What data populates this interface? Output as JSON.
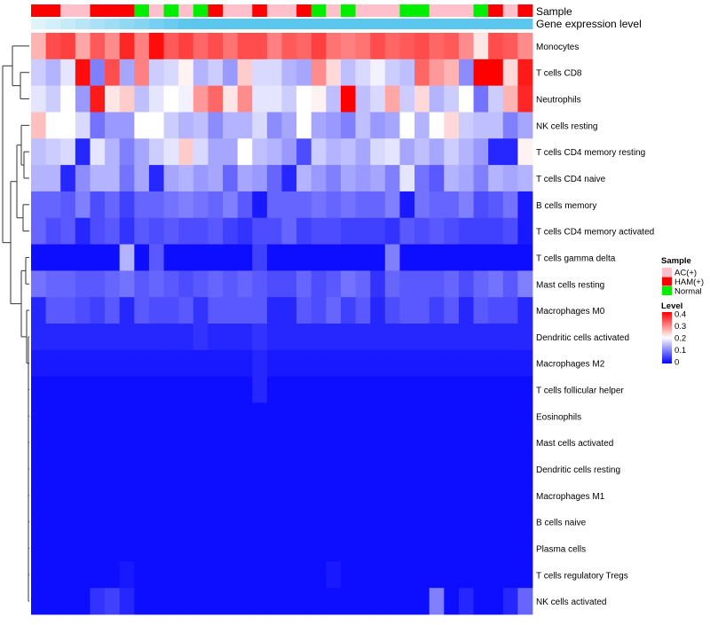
{
  "chart_data": {
    "type": "heatmap",
    "title": "",
    "annotation_labels": {
      "sample": "Sample",
      "expression": "Gene expression level"
    },
    "legend": {
      "sample_title": "Sample",
      "sample_entries": [
        {
          "label": "AC(+)",
          "color": "#ffc0cb"
        },
        {
          "label": "HAM(+)",
          "color": "#ff0000"
        },
        {
          "label": "Normal",
          "color": "#00ee00"
        }
      ],
      "level_title": "Level",
      "level_ticks": [
        "0.4",
        "0.3",
        "0.2",
        "0.1",
        "0"
      ],
      "level_range": [
        0,
        0.4
      ],
      "level_colors": {
        "low": "#0000ff",
        "mid": "#ffffff",
        "high": "#ff0000"
      }
    },
    "sample_colors": {
      "A": "#ffc0cb",
      "H": "#ff0000",
      "N": "#00ee00"
    },
    "samples": [
      "H",
      "H",
      "A",
      "A",
      "H",
      "H",
      "H",
      "N",
      "A",
      "N",
      "A",
      "N",
      "H",
      "A",
      "A",
      "H",
      "A",
      "A",
      "H",
      "N",
      "A",
      "N",
      "A",
      "A",
      "A",
      "N",
      "N",
      "A",
      "A",
      "A",
      "N",
      "H",
      "A",
      "H"
    ],
    "expression_colors": {
      "left": "#dff3fb",
      "right": "#5bc6ee"
    },
    "rows": [
      "Monocytes",
      "T cells CD8",
      "Neutrophils",
      "NK cells resting",
      "T cells CD4 memory resting",
      "T cells CD4 naive",
      "B cells memory",
      "T cells CD4 memory activated",
      "T cells gamma delta",
      "Mast cells resting",
      "Macrophages M0",
      "Dendritic cells activated",
      "Macrophages M2",
      "T cells follicular helper",
      "Eosinophils",
      "Mast cells activated",
      "Dendritic cells resting",
      "Macrophages M1",
      "B cells naive",
      "Plasma cells",
      "T cells regulatory  Tregs",
      "NK cells activated"
    ],
    "values": [
      [
        0.26,
        0.34,
        0.35,
        0.27,
        0.33,
        0.29,
        0.37,
        0.3,
        0.39,
        0.33,
        0.35,
        0.32,
        0.34,
        0.31,
        0.34,
        0.34,
        0.3,
        0.33,
        0.32,
        0.35,
        0.31,
        0.3,
        0.31,
        0.34,
        0.32,
        0.33,
        0.34,
        0.32,
        0.33,
        0.29,
        0.22,
        0.34,
        0.33,
        0.29
      ],
      [
        0.16,
        0.14,
        0.18,
        0.39,
        0.1,
        0.34,
        0.13,
        0.3,
        0.16,
        0.17,
        0.21,
        0.14,
        0.16,
        0.12,
        0.24,
        0.17,
        0.17,
        0.14,
        0.13,
        0.29,
        0.23,
        0.15,
        0.17,
        0.19,
        0.16,
        0.15,
        0.32,
        0.28,
        0.26,
        0.11,
        0.4,
        0.4,
        0.23,
        0.38
      ],
      [
        0.18,
        0.16,
        0.2,
        0.12,
        0.38,
        0.22,
        0.24,
        0.15,
        0.18,
        0.2,
        0.19,
        0.28,
        0.32,
        0.22,
        0.29,
        0.18,
        0.18,
        0.16,
        0.2,
        0.21,
        0.15,
        0.4,
        0.15,
        0.17,
        0.27,
        0.16,
        0.23,
        0.14,
        0.16,
        0.2,
        0.09,
        0.16,
        0.26,
        0.37
      ],
      [
        0.25,
        0.2,
        0.2,
        0.17,
        0.09,
        0.12,
        0.12,
        0.2,
        0.2,
        0.16,
        0.14,
        0.15,
        0.11,
        0.14,
        0.14,
        0.17,
        0.11,
        0.13,
        0.2,
        0.13,
        0.12,
        0.1,
        0.15,
        0.12,
        0.13,
        0.2,
        0.14,
        0.2,
        0.23,
        0.16,
        0.15,
        0.15,
        0.1,
        0.13
      ],
      [
        0.15,
        0.16,
        0.17,
        0.03,
        0.18,
        0.14,
        0.1,
        0.13,
        0.16,
        0.18,
        0.24,
        0.17,
        0.13,
        0.13,
        0.2,
        0.15,
        0.14,
        0.12,
        0.06,
        0.16,
        0.14,
        0.15,
        0.13,
        0.17,
        0.18,
        0.13,
        0.15,
        0.13,
        0.16,
        0.14,
        0.12,
        0.03,
        0.03,
        0.21
      ],
      [
        0.14,
        0.14,
        0.03,
        0.11,
        0.14,
        0.14,
        0.09,
        0.13,
        0.03,
        0.13,
        0.14,
        0.12,
        0.13,
        0.08,
        0.13,
        0.12,
        0.08,
        0.03,
        0.14,
        0.12,
        0.1,
        0.13,
        0.12,
        0.13,
        0.1,
        0.18,
        0.09,
        0.07,
        0.14,
        0.13,
        0.1,
        0.14,
        0.13,
        0.14
      ],
      [
        0.08,
        0.08,
        0.07,
        0.1,
        0.06,
        0.08,
        0.05,
        0.08,
        0.08,
        0.09,
        0.1,
        0.09,
        0.08,
        0.1,
        0.07,
        0.02,
        0.08,
        0.08,
        0.08,
        0.09,
        0.08,
        0.09,
        0.08,
        0.08,
        0.1,
        0.02,
        0.09,
        0.08,
        0.08,
        0.1,
        0.06,
        0.07,
        0.09,
        0.02
      ],
      [
        0.08,
        0.06,
        0.07,
        0.03,
        0.06,
        0.07,
        0.04,
        0.07,
        0.06,
        0.07,
        0.06,
        0.06,
        0.07,
        0.05,
        0.04,
        0.06,
        0.06,
        0.08,
        0.05,
        0.06,
        0.06,
        0.05,
        0.05,
        0.05,
        0.04,
        0.07,
        0.06,
        0.07,
        0.06,
        0.05,
        0.05,
        0.05,
        0.06,
        0.02
      ],
      [
        0.01,
        0.01,
        0.01,
        0.01,
        0.01,
        0.01,
        0.14,
        0.01,
        0.07,
        0.01,
        0.01,
        0.01,
        0.01,
        0.01,
        0.01,
        0.05,
        0.01,
        0.01,
        0.01,
        0.01,
        0.01,
        0.01,
        0.01,
        0.01,
        0.1,
        0.01,
        0.01,
        0.01,
        0.01,
        0.01,
        0.01,
        0.01,
        0.01,
        0.01
      ],
      [
        0.09,
        0.08,
        0.08,
        0.07,
        0.07,
        0.08,
        0.09,
        0.07,
        0.08,
        0.07,
        0.06,
        0.07,
        0.08,
        0.07,
        0.08,
        0.07,
        0.06,
        0.06,
        0.08,
        0.06,
        0.07,
        0.09,
        0.08,
        0.04,
        0.08,
        0.07,
        0.07,
        0.07,
        0.08,
        0.06,
        0.08,
        0.09,
        0.07,
        0.1
      ],
      [
        0.03,
        0.07,
        0.07,
        0.06,
        0.05,
        0.07,
        0.03,
        0.07,
        0.06,
        0.06,
        0.07,
        0.04,
        0.07,
        0.07,
        0.07,
        0.07,
        0.03,
        0.03,
        0.07,
        0.06,
        0.08,
        0.05,
        0.07,
        0.03,
        0.06,
        0.07,
        0.07,
        0.05,
        0.07,
        0.03,
        0.07,
        0.06,
        0.06,
        0.03
      ],
      [
        0.03,
        0.03,
        0.03,
        0.03,
        0.03,
        0.03,
        0.03,
        0.03,
        0.03,
        0.03,
        0.03,
        0.04,
        0.03,
        0.03,
        0.03,
        0.04,
        0.03,
        0.03,
        0.03,
        0.03,
        0.03,
        0.03,
        0.03,
        0.03,
        0.03,
        0.03,
        0.03,
        0.03,
        0.03,
        0.03,
        0.03,
        0.03,
        0.03,
        0.03
      ],
      [
        0.02,
        0.02,
        0.02,
        0.02,
        0.02,
        0.02,
        0.02,
        0.02,
        0.02,
        0.02,
        0.02,
        0.02,
        0.02,
        0.02,
        0.02,
        0.03,
        0.02,
        0.02,
        0.02,
        0.02,
        0.02,
        0.02,
        0.02,
        0.02,
        0.02,
        0.02,
        0.02,
        0.02,
        0.02,
        0.02,
        0.02,
        0.02,
        0.02,
        0.02
      ],
      [
        0.01,
        0.01,
        0.01,
        0.01,
        0.01,
        0.01,
        0.01,
        0.01,
        0.01,
        0.01,
        0.01,
        0.01,
        0.01,
        0.01,
        0.01,
        0.03,
        0.01,
        0.01,
        0.01,
        0.01,
        0.01,
        0.01,
        0.01,
        0.01,
        0.01,
        0.01,
        0.01,
        0.01,
        0.01,
        0.01,
        0.01,
        0.01,
        0.01,
        0.01
      ],
      [
        0.01,
        0.01,
        0.01,
        0.01,
        0.01,
        0.01,
        0.01,
        0.01,
        0.01,
        0.01,
        0.01,
        0.01,
        0.01,
        0.01,
        0.01,
        0.01,
        0.01,
        0.01,
        0.01,
        0.01,
        0.01,
        0.01,
        0.01,
        0.01,
        0.01,
        0.01,
        0.01,
        0.01,
        0.01,
        0.01,
        0.01,
        0.01,
        0.01,
        0.01
      ],
      [
        0.01,
        0.01,
        0.01,
        0.01,
        0.01,
        0.01,
        0.01,
        0.01,
        0.01,
        0.01,
        0.01,
        0.01,
        0.01,
        0.01,
        0.01,
        0.01,
        0.01,
        0.01,
        0.01,
        0.01,
        0.01,
        0.01,
        0.01,
        0.01,
        0.01,
        0.01,
        0.01,
        0.01,
        0.01,
        0.01,
        0.01,
        0.01,
        0.01,
        0.01
      ],
      [
        0.01,
        0.01,
        0.01,
        0.01,
        0.01,
        0.01,
        0.01,
        0.01,
        0.01,
        0.01,
        0.01,
        0.01,
        0.01,
        0.01,
        0.01,
        0.01,
        0.01,
        0.01,
        0.01,
        0.01,
        0.01,
        0.01,
        0.01,
        0.01,
        0.01,
        0.01,
        0.01,
        0.01,
        0.01,
        0.01,
        0.01,
        0.01,
        0.01,
        0.01
      ],
      [
        0.01,
        0.01,
        0.01,
        0.01,
        0.01,
        0.01,
        0.01,
        0.01,
        0.01,
        0.01,
        0.01,
        0.01,
        0.01,
        0.01,
        0.01,
        0.01,
        0.01,
        0.01,
        0.01,
        0.01,
        0.01,
        0.01,
        0.01,
        0.01,
        0.01,
        0.01,
        0.01,
        0.01,
        0.01,
        0.01,
        0.01,
        0.01,
        0.01,
        0.01
      ],
      [
        0.01,
        0.01,
        0.01,
        0.01,
        0.01,
        0.01,
        0.01,
        0.01,
        0.01,
        0.01,
        0.01,
        0.01,
        0.01,
        0.01,
        0.01,
        0.01,
        0.01,
        0.01,
        0.01,
        0.01,
        0.01,
        0.01,
        0.01,
        0.01,
        0.01,
        0.01,
        0.01,
        0.01,
        0.01,
        0.01,
        0.01,
        0.01,
        0.01,
        0.01
      ],
      [
        0.01,
        0.01,
        0.01,
        0.01,
        0.01,
        0.01,
        0.01,
        0.01,
        0.01,
        0.01,
        0.01,
        0.01,
        0.01,
        0.01,
        0.01,
        0.01,
        0.01,
        0.01,
        0.01,
        0.01,
        0.01,
        0.01,
        0.01,
        0.01,
        0.01,
        0.01,
        0.01,
        0.01,
        0.01,
        0.01,
        0.01,
        0.01,
        0.01,
        0.01
      ],
      [
        0.01,
        0.01,
        0.01,
        0.01,
        0.01,
        0.01,
        0.02,
        0.01,
        0.01,
        0.01,
        0.01,
        0.01,
        0.01,
        0.01,
        0.01,
        0.01,
        0.01,
        0.01,
        0.01,
        0.01,
        0.02,
        0.01,
        0.01,
        0.01,
        0.01,
        0.01,
        0.01,
        0.01,
        0.01,
        0.01,
        0.01,
        0.01,
        0.01,
        0.01
      ],
      [
        0.01,
        0.01,
        0.01,
        0.01,
        0.04,
        0.05,
        0.03,
        0.01,
        0.01,
        0.01,
        0.01,
        0.01,
        0.01,
        0.01,
        0.01,
        0.01,
        0.01,
        0.01,
        0.01,
        0.01,
        0.01,
        0.01,
        0.01,
        0.01,
        0.01,
        0.01,
        0.01,
        0.1,
        0.01,
        0.03,
        0.01,
        0.01,
        0.03,
        0.08
      ]
    ]
  }
}
